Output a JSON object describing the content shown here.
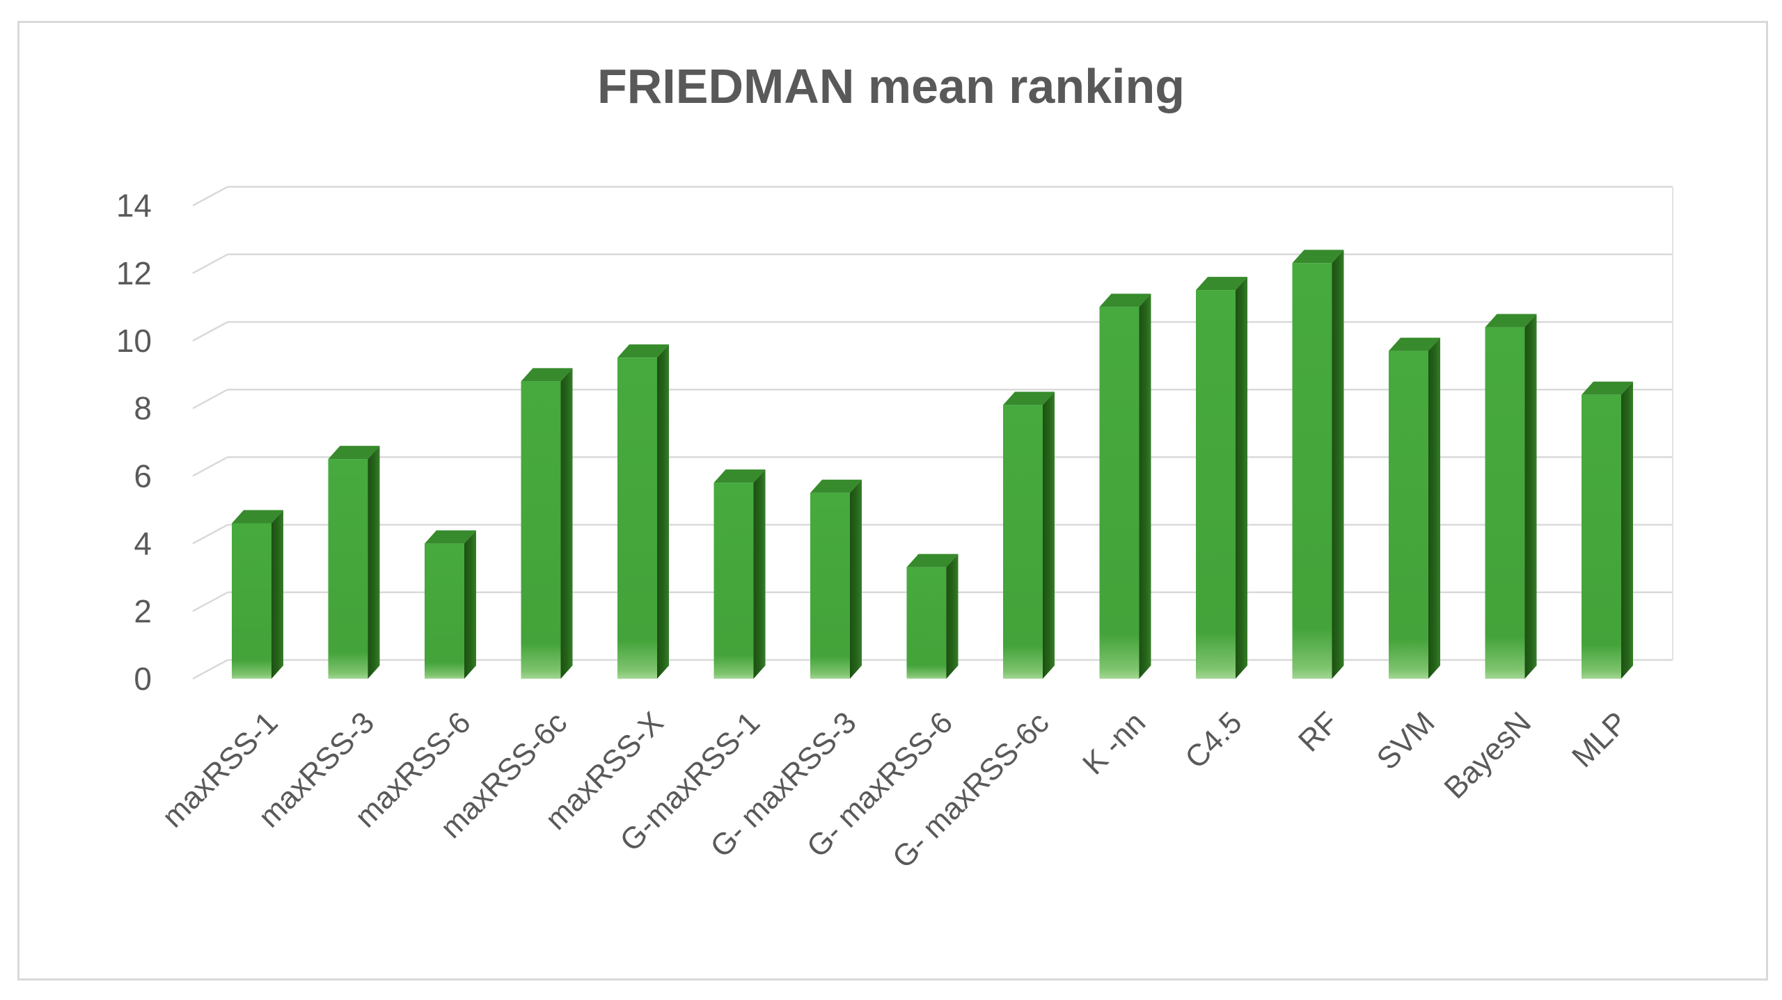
{
  "chart_data": {
    "type": "bar",
    "title": "FRIEDMAN mean ranking",
    "categories": [
      "maxRSS-1",
      "maxRSS-3",
      "maxRSS-6",
      "maxRSS-6c",
      "maxRSS-X",
      "G-maxRSS-1",
      "G- maxRSS-3",
      "G- maxRSS-6",
      "G- maxRSS-6c",
      "K -nn",
      "C4.5",
      "RF",
      "SVM",
      "BayesN",
      "MLP"
    ],
    "values": [
      4.6,
      6.5,
      4.0,
      8.8,
      9.5,
      5.8,
      5.5,
      3.3,
      8.1,
      11.0,
      11.5,
      12.3,
      9.7,
      10.4,
      8.4
    ],
    "xlabel": "",
    "ylabel": "",
    "ylim": [
      0,
      14
    ],
    "yticks": [
      0,
      2,
      4,
      6,
      8,
      10,
      12,
      14
    ],
    "legend": "none",
    "grid": true,
    "style_3d": true,
    "x_label_rotation_deg": -45,
    "colors": {
      "bar_front": "#46aa3e",
      "bar_front_shade": "#44a33a",
      "bar_front_bottom_glow": "#a4d796",
      "bar_top": "#378b2c",
      "bar_side_dark": "#1c5012",
      "bar_side_light": "#357e28",
      "gridline": "#d9d9d9",
      "wall_edge": "#e2e2e2",
      "text": "#595959",
      "border": "#d9d9d9",
      "background": "#ffffff"
    }
  }
}
